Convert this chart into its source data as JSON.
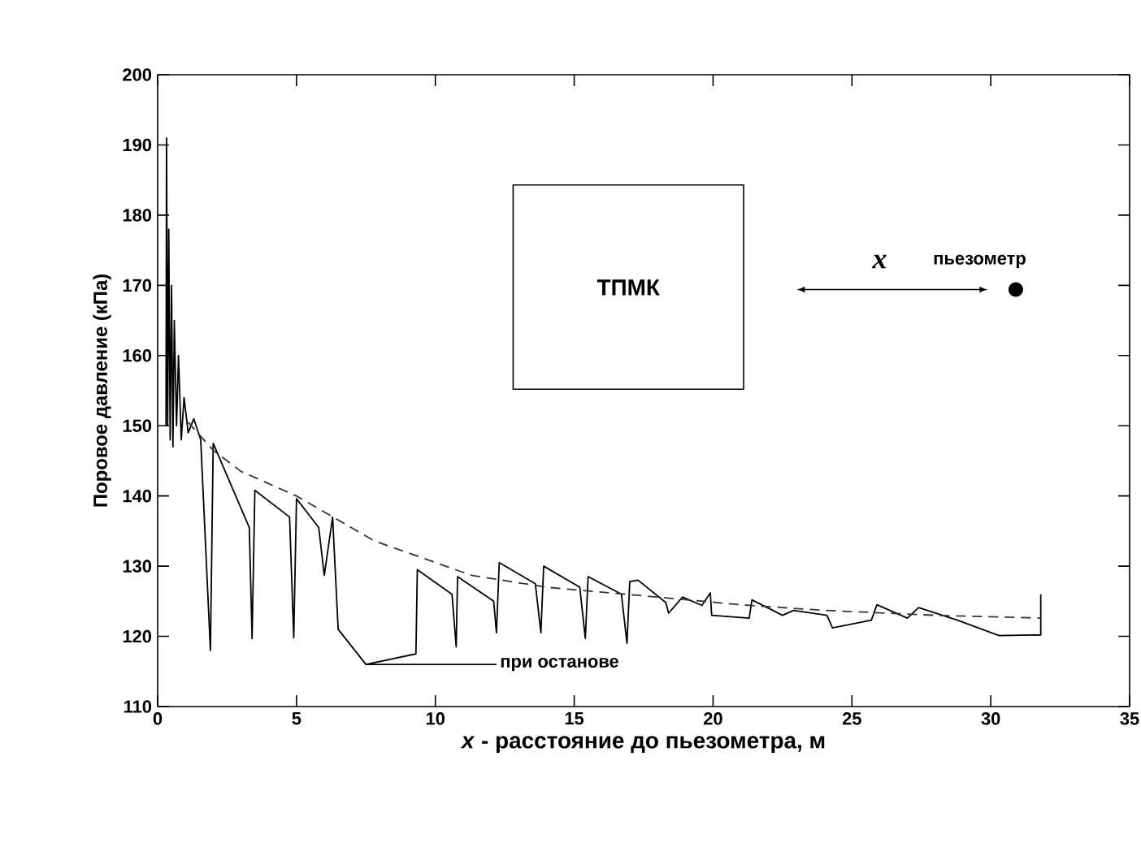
{
  "chart_data": {
    "type": "line",
    "xlabel": "*x* - расстояние до пьезометра, м",
    "ylabel": "Поровое давление (кПа)",
    "xlim": [
      0,
      35
    ],
    "ylim": [
      110,
      200
    ],
    "xticks": [
      0,
      5,
      10,
      15,
      20,
      25,
      30,
      35
    ],
    "yticks": [
      110,
      120,
      130,
      140,
      150,
      160,
      170,
      180,
      190,
      200
    ],
    "marker": "none",
    "series": [
      {
        "color": "#000000",
        "line_style": "solid",
        "x": [
          0.3,
          0.32,
          0.36,
          0.4,
          0.45,
          0.5,
          0.55,
          0.6,
          0.68,
          0.75,
          0.85,
          0.95,
          1.1,
          1.3,
          1.55,
          1.9,
          2.0,
          3.3,
          3.4,
          3.5,
          4.75,
          4.9,
          5.0,
          5.8,
          6.0,
          6.3,
          6.5,
          7.5,
          9.3,
          9.35,
          10.6,
          10.75,
          10.8,
          12.1,
          12.2,
          12.3,
          13.6,
          13.8,
          13.9,
          15.2,
          15.4,
          15.5,
          16.7,
          16.9,
          17.0,
          17.3,
          18.3,
          18.4,
          18.9,
          19.6,
          19.9,
          19.95,
          21.3,
          21.4,
          22.5,
          22.9,
          24.1,
          24.3,
          25.7,
          25.9,
          27.0,
          27.4,
          28.8,
          30.3,
          31.8,
          31.8
        ],
        "values": [
          150,
          191,
          150,
          178,
          148,
          170,
          147,
          165,
          150,
          160,
          148,
          154,
          149,
          151,
          148,
          118,
          147.5,
          135.5,
          119.7,
          140.8,
          137,
          119.8,
          139.6,
          135.5,
          128.7,
          137,
          121,
          116,
          117.5,
          129.5,
          126,
          118.5,
          128.5,
          125,
          120.5,
          130.5,
          127.5,
          120.5,
          130,
          127,
          119.7,
          128.5,
          126,
          119,
          127.8,
          128,
          124.8,
          123.3,
          125.6,
          124.4,
          126.2,
          123,
          122.6,
          125.2,
          123,
          123.7,
          123,
          121.2,
          122.3,
          124.5,
          122.6,
          124.1,
          122.3,
          120.1,
          120.2,
          126
        ]
      },
      {
        "color": "#333333",
        "line_style": "dashed",
        "x": [
          1.1,
          2,
          3,
          5,
          7.8,
          11.3,
          14,
          17.7,
          21,
          24,
          28,
          31.8
        ],
        "values": [
          150.5,
          146.5,
          143.5,
          140,
          133.6,
          128.7,
          127,
          125.7,
          124.5,
          123.7,
          123,
          122.6
        ]
      }
    ],
    "annotations": [
      "ТПМК",
      "x",
      "пьезометр",
      {
        "text": "при останове",
        "x": 7.5,
        "y": 116
      }
    ]
  }
}
